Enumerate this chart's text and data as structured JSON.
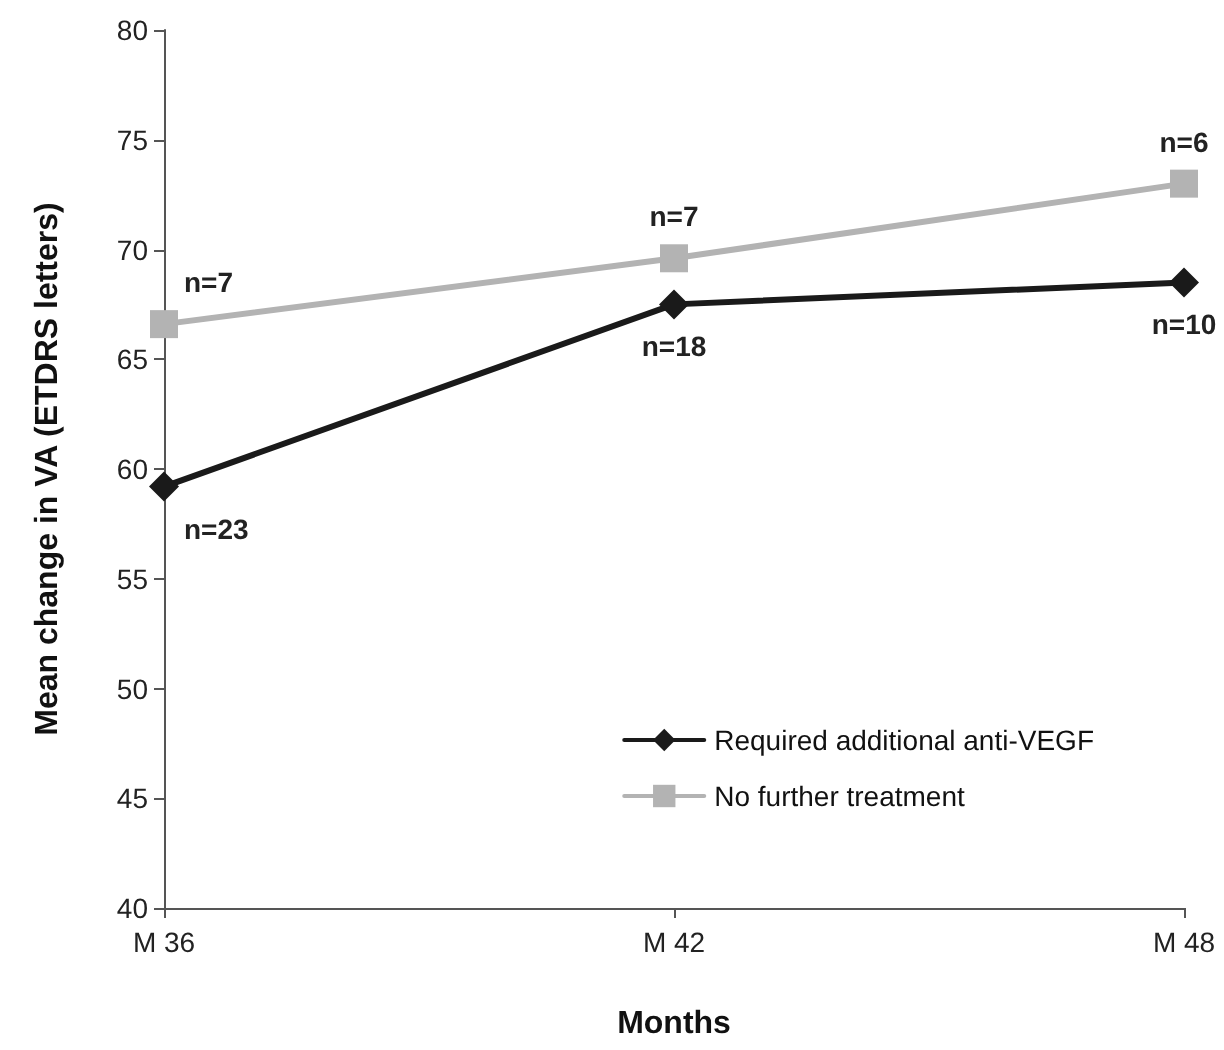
{
  "chart_data": {
    "type": "line",
    "xlabel": "Months",
    "ylabel": "Mean change in VA (ETDRS letters)",
    "categories": [
      "M 36",
      "M 42",
      "M 48"
    ],
    "series": [
      {
        "name": "Required additional anti-VEGF",
        "color": "#1a1a1a",
        "marker": "diamond",
        "values": [
          59.2,
          67.5,
          68.5
        ]
      },
      {
        "name": "No further treatment",
        "color": "#b3b3b3",
        "marker": "square",
        "values": [
          66.6,
          69.6,
          73.0
        ]
      }
    ],
    "annotations": [
      {
        "text": "n=23",
        "x": "M 36",
        "y": 59.2
      },
      {
        "text": "n=18",
        "x": "M 42",
        "y": 67.5
      },
      {
        "text": "n=10",
        "x": "M 48",
        "y": 68.5
      },
      {
        "text": "n=7",
        "x": "M 36",
        "y": 66.6
      },
      {
        "text": "n=7",
        "x": "M 42",
        "y": 69.6
      },
      {
        "text": "n=6",
        "x": "M 48",
        "y": 73.0
      }
    ],
    "ylim": [
      40,
      80
    ],
    "yticks": [
      40,
      45,
      50,
      55,
      60,
      65,
      70,
      75,
      80
    ],
    "grid": false,
    "legend": "bottom right",
    "line_style": "solid"
  }
}
